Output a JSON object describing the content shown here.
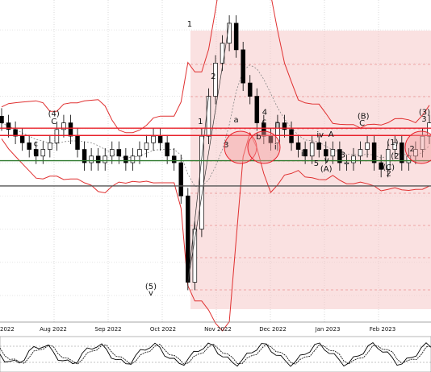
{
  "chart_data": {
    "type": "candlestick",
    "title": "",
    "x_axis": {
      "labels": [
        "Aug 2022",
        "Sep 2022",
        "Oct 2022",
        "Nov 2022",
        "Dec 2022",
        "Jan 2023",
        "Feb 2023"
      ],
      "left_edge_label": "2022"
    },
    "indicators": [
      "bollinger-bands",
      "moving-average",
      "oscillator"
    ],
    "grid": true,
    "highlight_zone": "right",
    "wave_labels": [
      {
        "label": "(4)",
        "x": 0.125,
        "y": 1.17
      },
      {
        "label": "C",
        "x": 0.125,
        "y": 1.158
      },
      {
        "label": "c",
        "x": 0.083,
        "y": 1.125
      },
      {
        "label": "B",
        "x": 0.083,
        "y": 1.112
      },
      {
        "label": "(5)",
        "x": 0.35,
        "y": 0.91
      },
      {
        "label": "v",
        "x": 0.35,
        "y": 0.9
      },
      {
        "label": "1",
        "x": 0.44,
        "y": 1.305
      },
      {
        "label": "2",
        "x": 0.495,
        "y": 1.226
      },
      {
        "label": "1",
        "x": 0.465,
        "y": 1.158
      },
      {
        "label": "3",
        "x": 0.525,
        "y": 1.123
      },
      {
        "label": "4",
        "x": 0.614,
        "y": 1.172
      },
      {
        "label": "a",
        "x": 0.548,
        "y": 1.161
      },
      {
        "label": "c",
        "x": 0.613,
        "y": 1.158
      },
      {
        "label": "b",
        "x": 0.6,
        "y": 1.135
      },
      {
        "label": "i",
        "x": 0.639,
        "y": 1.12
      },
      {
        "label": "ii",
        "x": 0.643,
        "y": 1.153
      },
      {
        "label": "iii",
        "x": 0.706,
        "y": 1.11
      },
      {
        "label": "iv",
        "x": 0.743,
        "y": 1.138
      },
      {
        "label": "A",
        "x": 0.768,
        "y": 1.139
      },
      {
        "label": "v",
        "x": 0.758,
        "y": 1.1
      },
      {
        "label": "5",
        "x": 0.734,
        "y": 1.095
      },
      {
        "label": "(A)",
        "x": 0.757,
        "y": 1.087
      },
      {
        "label": "B",
        "x": 0.795,
        "y": 1.108
      },
      {
        "label": "(B)",
        "x": 0.843,
        "y": 1.166
      },
      {
        "label": "C",
        "x": 0.84,
        "y": 1.156
      },
      {
        "label": "(1)",
        "x": 0.911,
        "y": 1.127
      },
      {
        "label": "(2)",
        "x": 0.92,
        "y": 1.106
      },
      {
        "label": "2",
        "x": 0.956,
        "y": 1.117
      },
      {
        "label": "(C)",
        "x": 0.902,
        "y": 1.089
      },
      {
        "label": "2",
        "x": 0.902,
        "y": 1.08
      },
      {
        "label": "(3)",
        "x": 0.985,
        "y": 1.172
      },
      {
        "label": "3",
        "x": 0.984,
        "y": 1.162
      }
    ],
    "horizontal_levels": [
      {
        "value": 1.152,
        "color": "#e8202a",
        "style": "solid"
      },
      {
        "value": 1.141,
        "color": "#e8202a",
        "style": "solid"
      },
      {
        "value": 1.103,
        "color": "#2f7a2f",
        "style": "solid"
      },
      {
        "value": 1.065,
        "color": "#555555",
        "style": "solid"
      }
    ],
    "colors": {
      "candle_up": "#ffffff",
      "candle_down": "#000000",
      "bands": "#e03030",
      "zone": "#f6c8c8",
      "oscillator": "#000000"
    },
    "ohlc_close_path": [
      1.16,
      1.15,
      1.14,
      1.13,
      1.12,
      1.11,
      1.12,
      1.13,
      1.15,
      1.16,
      1.14,
      1.12,
      1.1,
      1.11,
      1.1,
      1.11,
      1.12,
      1.11,
      1.1,
      1.11,
      1.12,
      1.13,
      1.14,
      1.13,
      1.11,
      1.1,
      1.05,
      0.92,
      1.0,
      1.14,
      1.2,
      1.25,
      1.28,
      1.31,
      1.27,
      1.22,
      1.2,
      1.16,
      1.14,
      1.13,
      1.16,
      1.15,
      1.13,
      1.12,
      1.11,
      1.13,
      1.12,
      1.11,
      1.12,
      1.1,
      1.1,
      1.11,
      1.12,
      1.13,
      1.1,
      1.09,
      1.12,
      1.13,
      1.1,
      1.11,
      1.12,
      1.14,
      1.16
    ]
  }
}
